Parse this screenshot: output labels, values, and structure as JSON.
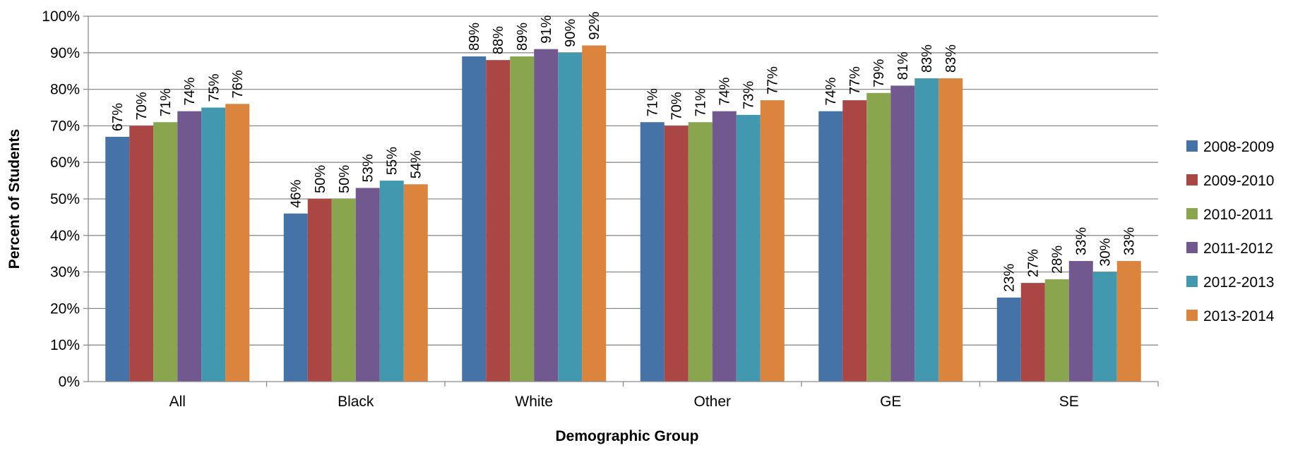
{
  "chart_data": {
    "type": "bar",
    "xlabel": "Demographic Group",
    "ylabel": "Percent of Students",
    "ylim": [
      0,
      100
    ],
    "yticks": [
      "0%",
      "10%",
      "20%",
      "30%",
      "40%",
      "50%",
      "60%",
      "70%",
      "80%",
      "90%",
      "100%"
    ],
    "categories": [
      "All",
      "Black",
      "White",
      "Other",
      "GE",
      "SE"
    ],
    "grid": true,
    "legend_position": "right",
    "series": [
      {
        "name": "2008-2009",
        "color": "#4572A7",
        "values": [
          67,
          46,
          89,
          71,
          74,
          23
        ],
        "labels": [
          "67%",
          "46%",
          "89%",
          "71%",
          "74%",
          "23%"
        ]
      },
      {
        "name": "2009-2010",
        "color": "#AA4643",
        "values": [
          70,
          50,
          88,
          70,
          77,
          27
        ],
        "labels": [
          "70%",
          "50%",
          "88%",
          "70%",
          "77%",
          "27%"
        ]
      },
      {
        "name": "2010-2011",
        "color": "#89A54E",
        "values": [
          71,
          50,
          89,
          71,
          79,
          28
        ],
        "labels": [
          "71%",
          "50%",
          "89%",
          "71%",
          "79%",
          "28%"
        ]
      },
      {
        "name": "2011-2012",
        "color": "#71588F",
        "values": [
          74,
          53,
          91,
          74,
          81,
          33
        ],
        "labels": [
          "74%",
          "53%",
          "91%",
          "74%",
          "81%",
          "33%"
        ]
      },
      {
        "name": "2012-2013",
        "color": "#4198AF",
        "values": [
          75,
          55,
          90,
          73,
          83,
          30
        ],
        "labels": [
          "75%",
          "55%",
          "90%",
          "73%",
          "83%",
          "30%"
        ]
      },
      {
        "name": "2013-2014",
        "color": "#DB843D",
        "values": [
          76,
          54,
          92,
          77,
          83,
          33
        ],
        "labels": [
          "76%",
          "54%",
          "92%",
          "77%",
          "83%",
          "33%"
        ]
      }
    ]
  }
}
